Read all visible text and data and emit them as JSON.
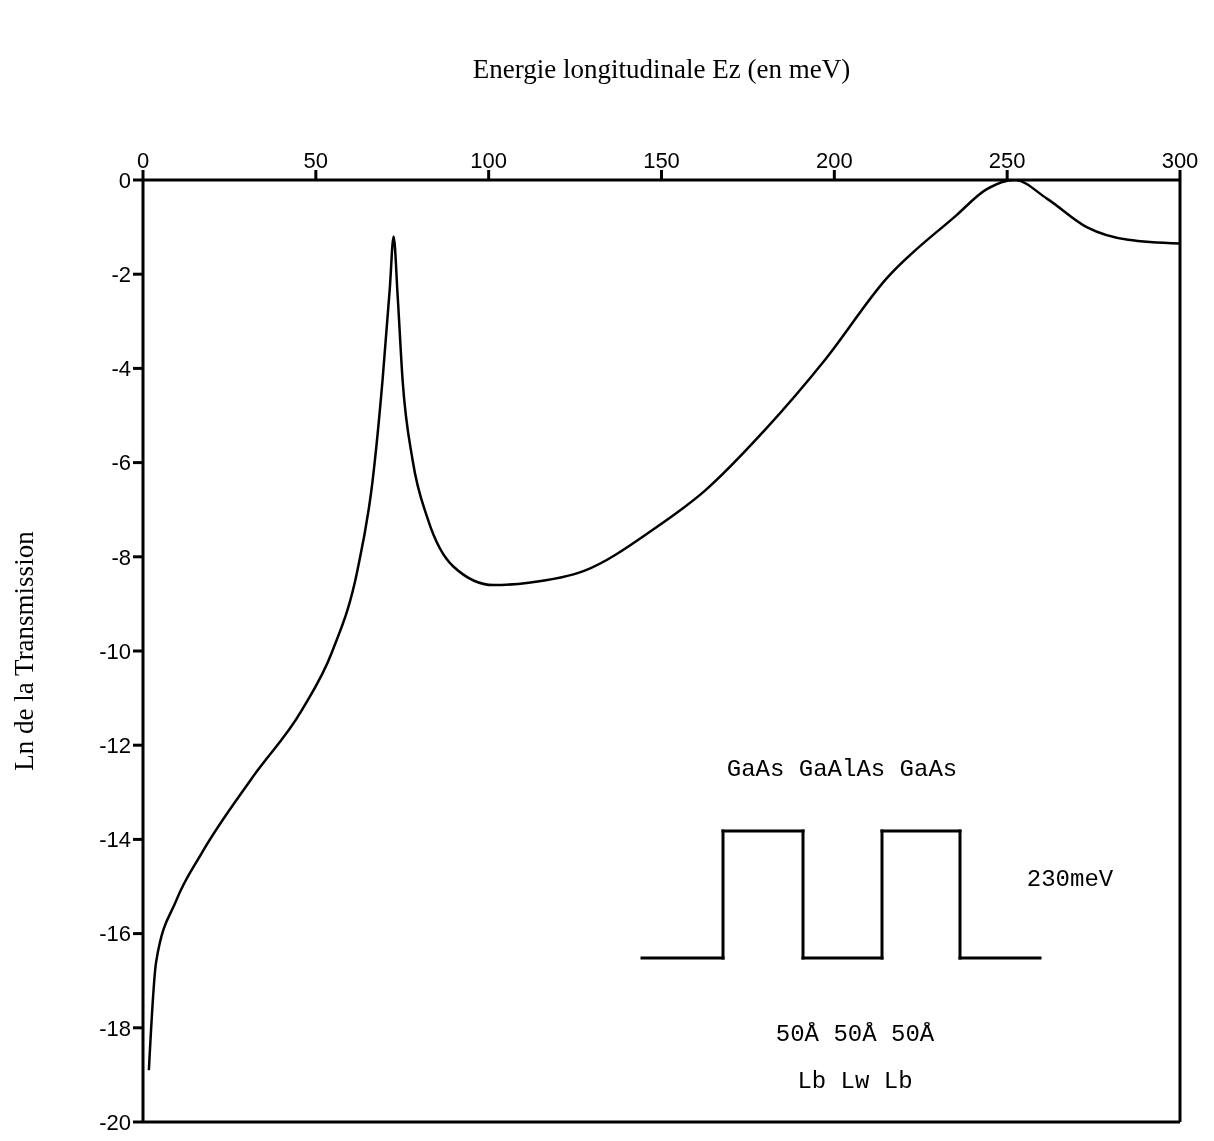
{
  "chart_data": {
    "type": "line",
    "xlabel": "Energie longitudinale Ez (en meV)",
    "ylabel": "Ln de la Transmission",
    "xlim": [
      0,
      300
    ],
    "xticks": [
      0,
      50,
      100,
      150,
      200,
      250,
      300
    ],
    "ylim": [
      -20,
      0
    ],
    "yticks": [
      0,
      -2,
      -4,
      -6,
      -8,
      -10,
      -12,
      -14,
      -16,
      -18,
      -20
    ],
    "series": [
      {
        "color": "#000000",
        "x": [
          1.7,
          3.8,
          9.6,
          16.9,
          31.5,
          46,
          54.8,
          62,
          66.4,
          69.3,
          71.4,
          72.5,
          73.7,
          75.1,
          78,
          82.4,
          89.7,
          101.4,
          111.6,
          127.6,
          148,
          162.5,
          180,
          197.5,
          215,
          235.3,
          244,
          252.2,
          261.6,
          273,
          285,
          300
        ],
        "values": [
          -18.9,
          -16.6,
          -15.3,
          -14.3,
          -12.7,
          -11.25,
          -10,
          -8.3,
          -6.4,
          -4.25,
          -2.3,
          -1.2,
          -2.5,
          -4.25,
          -5.95,
          -7.2,
          -8.2,
          -8.6,
          -8.55,
          -8.3,
          -7.4,
          -6.6,
          -5.3,
          -3.8,
          -2.1,
          -0.75,
          -0.2,
          0,
          -0.4,
          -1,
          -1.27,
          -1.35
        ]
      }
    ],
    "annotations": [
      "GaAs GaAlAs GaAs",
      "230meV",
      "50Å 50Å 50Å",
      "Lb Lw Lb"
    ]
  }
}
